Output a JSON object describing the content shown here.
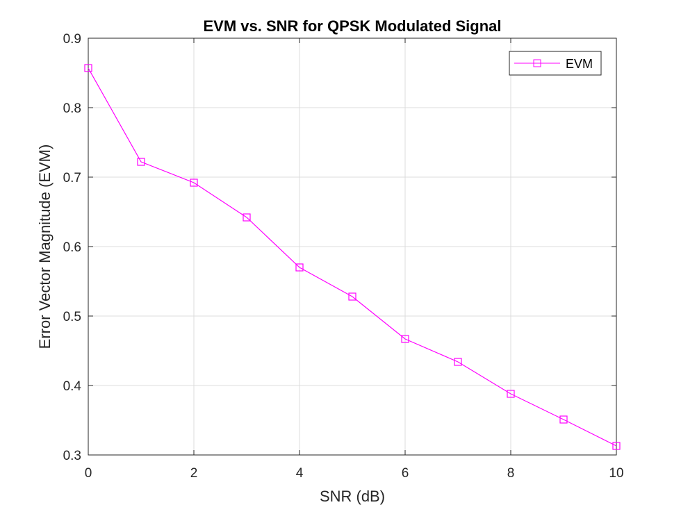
{
  "chart_data": {
    "type": "line",
    "title": "EVM vs. SNR for QPSK Modulated Signal",
    "xlabel": "SNR (dB)",
    "ylabel": "Error Vector Magnitude (EVM)",
    "xlim": [
      0,
      10
    ],
    "ylim": [
      0.3,
      0.9
    ],
    "xticks": [
      0,
      2,
      4,
      6,
      8,
      10
    ],
    "xtick_labels": [
      "0",
      "2",
      "4",
      "6",
      "8",
      "10"
    ],
    "yticks": [
      0.3,
      0.4,
      0.5,
      0.6,
      0.7,
      0.8,
      0.9
    ],
    "ytick_labels": [
      "0.3",
      "0.4",
      "0.5",
      "0.6",
      "0.7",
      "0.8",
      "0.9"
    ],
    "grid": true,
    "legend_position": "top-right",
    "series": [
      {
        "name": "EVM",
        "color": "#ff00ff",
        "marker": "square",
        "x": [
          0,
          1,
          2,
          3,
          4,
          5,
          6,
          7,
          8,
          9,
          10
        ],
        "y": [
          0.857,
          0.722,
          0.692,
          0.642,
          0.57,
          0.528,
          0.467,
          0.434,
          0.388,
          0.351,
          0.313
        ]
      }
    ]
  }
}
